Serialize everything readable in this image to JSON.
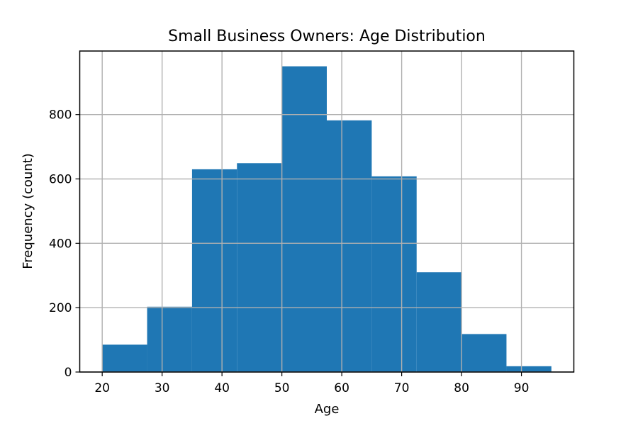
{
  "chart_data": {
    "type": "bar",
    "title": "Small Business Owners: Age Distribution",
    "xlabel": "Age",
    "ylabel": "Frequency (count)",
    "bin_edges": [
      20,
      27.5,
      35,
      42.5,
      50,
      57.5,
      65,
      72.5,
      80,
      87.5,
      95
    ],
    "values": [
      85,
      203,
      630,
      649,
      950,
      782,
      608,
      310,
      118,
      18
    ],
    "xlim": [
      16.25,
      98.75
    ],
    "ylim": [
      0,
      997.5
    ],
    "xticks": [
      20,
      30,
      40,
      50,
      60,
      70,
      80,
      90
    ],
    "yticks": [
      0,
      200,
      400,
      600,
      800
    ],
    "grid": true,
    "bar_color": "#1f77b4",
    "grid_color": "#b0b0b0"
  }
}
